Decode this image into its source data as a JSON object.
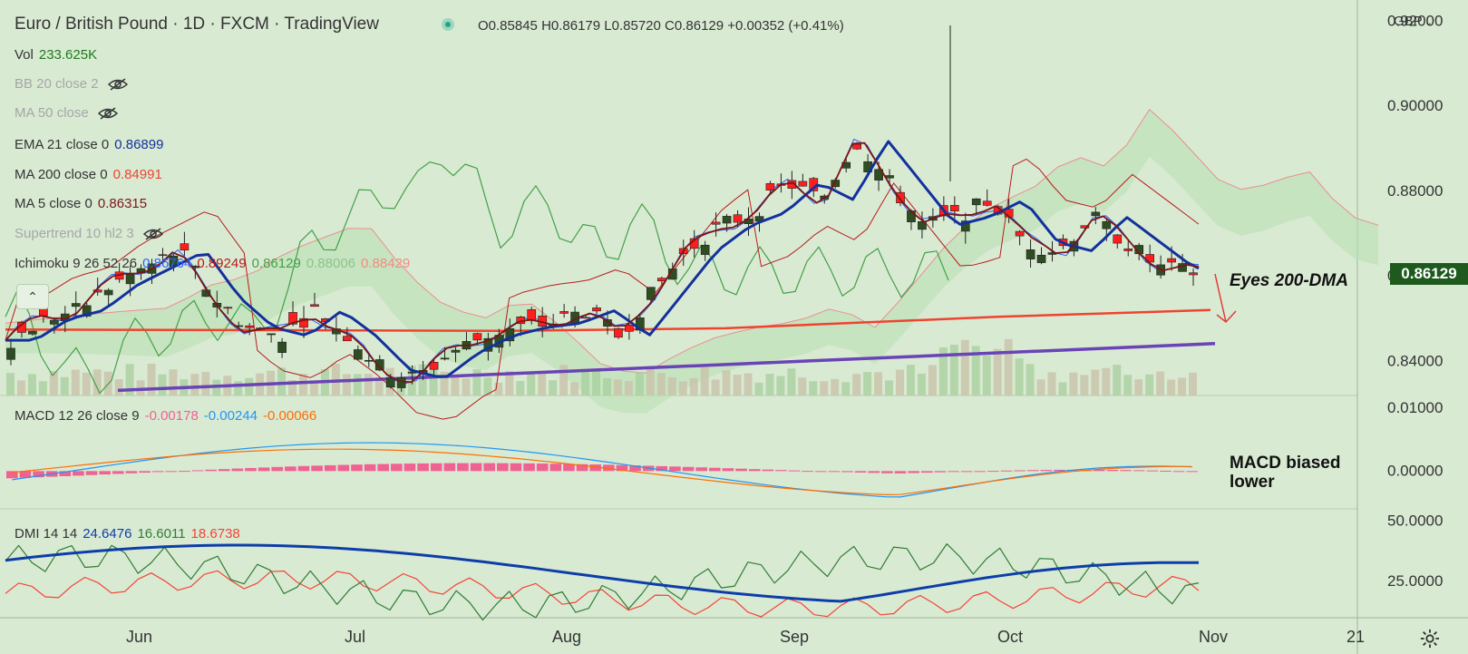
{
  "header": {
    "symbol_title": "Euro / British Pound · 1D · FXCM · TradingView",
    "ohlc": {
      "open": "O0.85845",
      "high": "H0.86179",
      "low": "L0.85720",
      "close": "C0.86129",
      "change": "+0.00352 (+0.41%)"
    }
  },
  "legend": {
    "vol": {
      "label": "Vol",
      "value": "233.625K"
    },
    "bb": {
      "label": "BB 20 close 2"
    },
    "ma50": {
      "label": "MA 50 close"
    },
    "ema21": {
      "label": "EMA 21 close 0",
      "value": "0.86899"
    },
    "ma200": {
      "label": "MA 200 close 0",
      "value": "0.84991"
    },
    "ma5": {
      "label": "MA 5 close 0",
      "value": "0.86315"
    },
    "supertrend": {
      "label": "Supertrend 10 hl2 3"
    },
    "ichimoku": {
      "label": "Ichimoku 9 26 52 26",
      "v1": "0.86764",
      "v2": "0.89249",
      "v3": "0.86129",
      "v4": "0.88006",
      "v5": "0.88429"
    },
    "macd": {
      "label": "MACD 12 26 close 9",
      "v1": "-0.00178",
      "v2": "-0.00244",
      "v3": "-0.00066"
    },
    "dmi": {
      "label": "DMI 14 14",
      "v1": "24.6476",
      "v2": "16.6011",
      "v3": "18.6738"
    }
  },
  "annotations": {
    "eyes": "Eyes 200-DMA",
    "macd_line1": "MACD biased",
    "macd_line2": "lower"
  },
  "price_axis": {
    "currency": "GBP",
    "labels": [
      "0.92000",
      "0.90000",
      "0.88000",
      "0.86000",
      "0.84000"
    ],
    "last_price": "0.86129"
  },
  "macd_axis": {
    "labels": [
      "0.01000",
      "0.00000"
    ]
  },
  "dmi_axis": {
    "labels": [
      "50.0000",
      "25.0000"
    ]
  },
  "time_axis": {
    "labels": [
      "Jun",
      "Jul",
      "Aug",
      "Sep",
      "Oct",
      "Nov",
      "21"
    ]
  },
  "colors": {
    "background": "#d9ead3",
    "up": "#2e4d22",
    "down": "#ff1e1e",
    "ema21": "#13319d",
    "ma200": "#ef4330",
    "ma5": "#7a1515",
    "trendline": "#6a43b6",
    "tenkan": "#2962ff",
    "kijun": "#b71c1c",
    "chikou": "#43a047",
    "macd_line": "#2196f3",
    "signal_line": "#ff6d00",
    "histogram": "#f06292",
    "di_plus": "#2e7d32",
    "di_minus": "#f44336",
    "adx": "#0d3ea8",
    "price_tag": "#1e5a1e"
  },
  "chart_data": {
    "type": "line",
    "title": "Euro / British Pound · 1D · FXCM · TradingView",
    "x": [
      "Jun",
      "Jul",
      "Aug",
      "Sep",
      "Oct",
      "Nov",
      "21"
    ],
    "ylim": [
      0.832,
      0.925
    ],
    "price_path": [
      0.845,
      0.85,
      0.852,
      0.858,
      0.862,
      0.866,
      0.855,
      0.848,
      0.846,
      0.852,
      0.846,
      0.838,
      0.836,
      0.842,
      0.846,
      0.848,
      0.849,
      0.852,
      0.846,
      0.856,
      0.866,
      0.872,
      0.875,
      0.882,
      0.878,
      0.892,
      0.882,
      0.872,
      0.874,
      0.878,
      0.868,
      0.866,
      0.874,
      0.868,
      0.862,
      0.861
    ],
    "series": [
      {
        "name": "EMA 21 close 0",
        "last": 0.86899
      },
      {
        "name": "MA 200 close 0",
        "last": 0.84991
      },
      {
        "name": "MA 5 close 0",
        "last": 0.86315
      }
    ],
    "macd": {
      "ylim": [
        -0.006,
        0.012
      ],
      "ticks": [
        0.01,
        0.0
      ],
      "last": [
        -0.00178,
        -0.00244,
        -0.00066
      ]
    },
    "dmi": {
      "ylim": [
        10,
        55
      ],
      "ticks": [
        50,
        25
      ],
      "last": [
        24.6476,
        16.6011,
        18.6738
      ]
    }
  }
}
